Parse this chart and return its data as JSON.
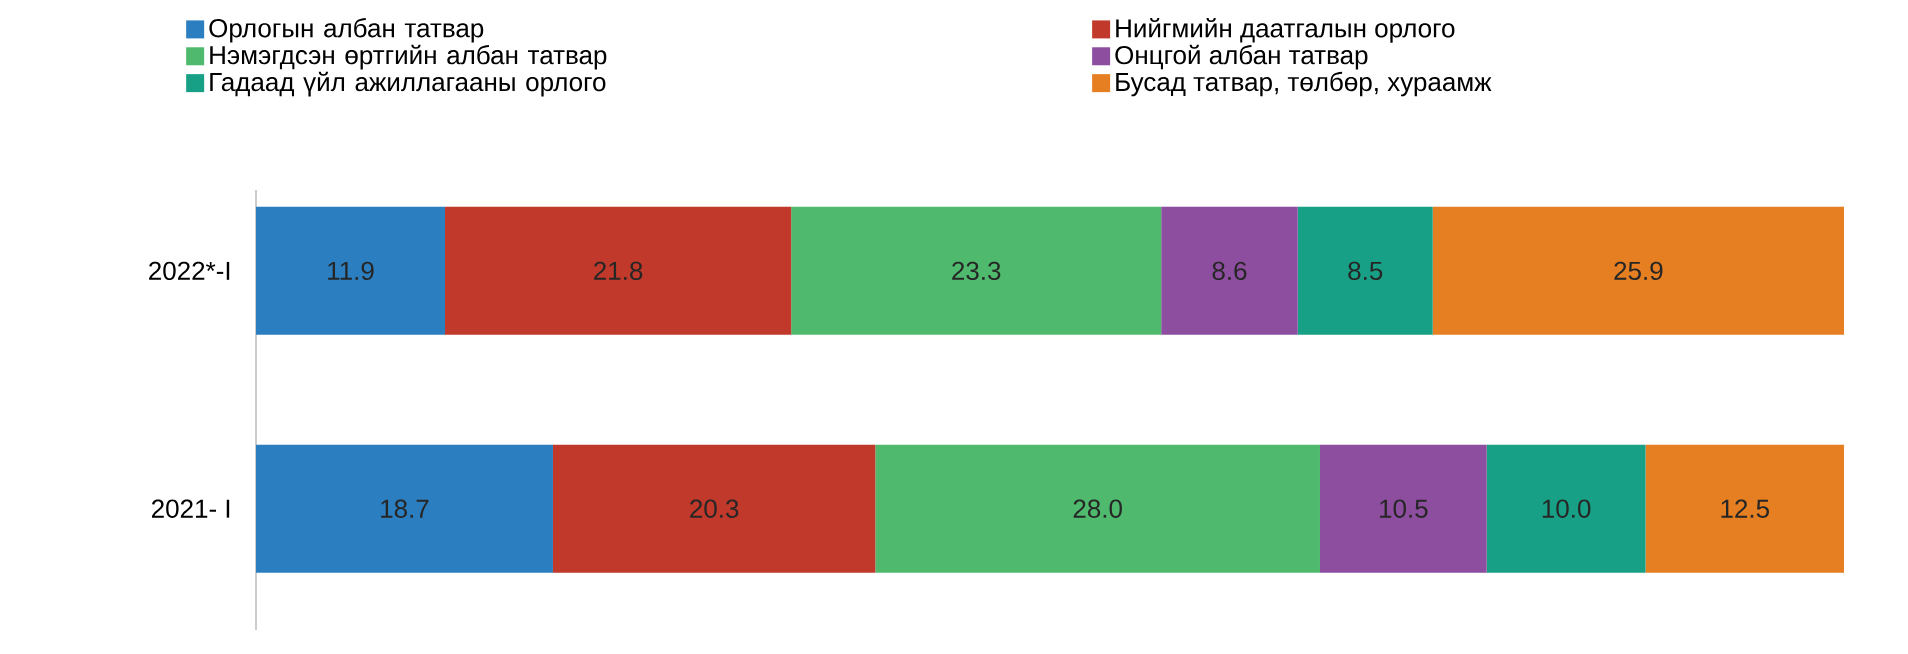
{
  "chart_data": {
    "type": "bar",
    "orientation": "horizontal",
    "stacked": true,
    "legend": "top",
    "categories": [
      "2022*-I",
      "2021- I"
    ],
    "series": [
      {
        "name": "Орлогын албан татвар",
        "color": "#2b7fc0",
        "values": [
          11.9,
          18.7
        ],
        "value_labels": [
          "11.9",
          "18.7"
        ]
      },
      {
        "name": "Нийгмийн даатгалын орлого",
        "color": "#c0392b",
        "values": [
          21.8,
          20.3
        ],
        "value_labels": [
          "21.8",
          "20.3"
        ]
      },
      {
        "name": "Нэмэгдсэн өртгийн албан татвар",
        "color": "#4fba6e",
        "values": [
          23.3,
          28.0
        ],
        "value_labels": [
          "23.3",
          "28.0"
        ]
      },
      {
        "name": "Онцгой албан татвар",
        "color": "#8e4ea0",
        "values": [
          8.6,
          10.5
        ],
        "value_labels": [
          "8.6",
          "10.5"
        ]
      },
      {
        "name": "Гадаад үйл ажиллагааны орлого",
        "color": "#17a086",
        "values": [
          8.5,
          10.0
        ],
        "value_labels": [
          "8.5",
          "10.0"
        ]
      },
      {
        "name": "Бусад татвар, төлбөр, хураамж",
        "color": "#e67e22",
        "values": [
          25.9,
          12.5
        ],
        "value_labels": [
          "25.9",
          "12.5"
        ]
      }
    ]
  }
}
